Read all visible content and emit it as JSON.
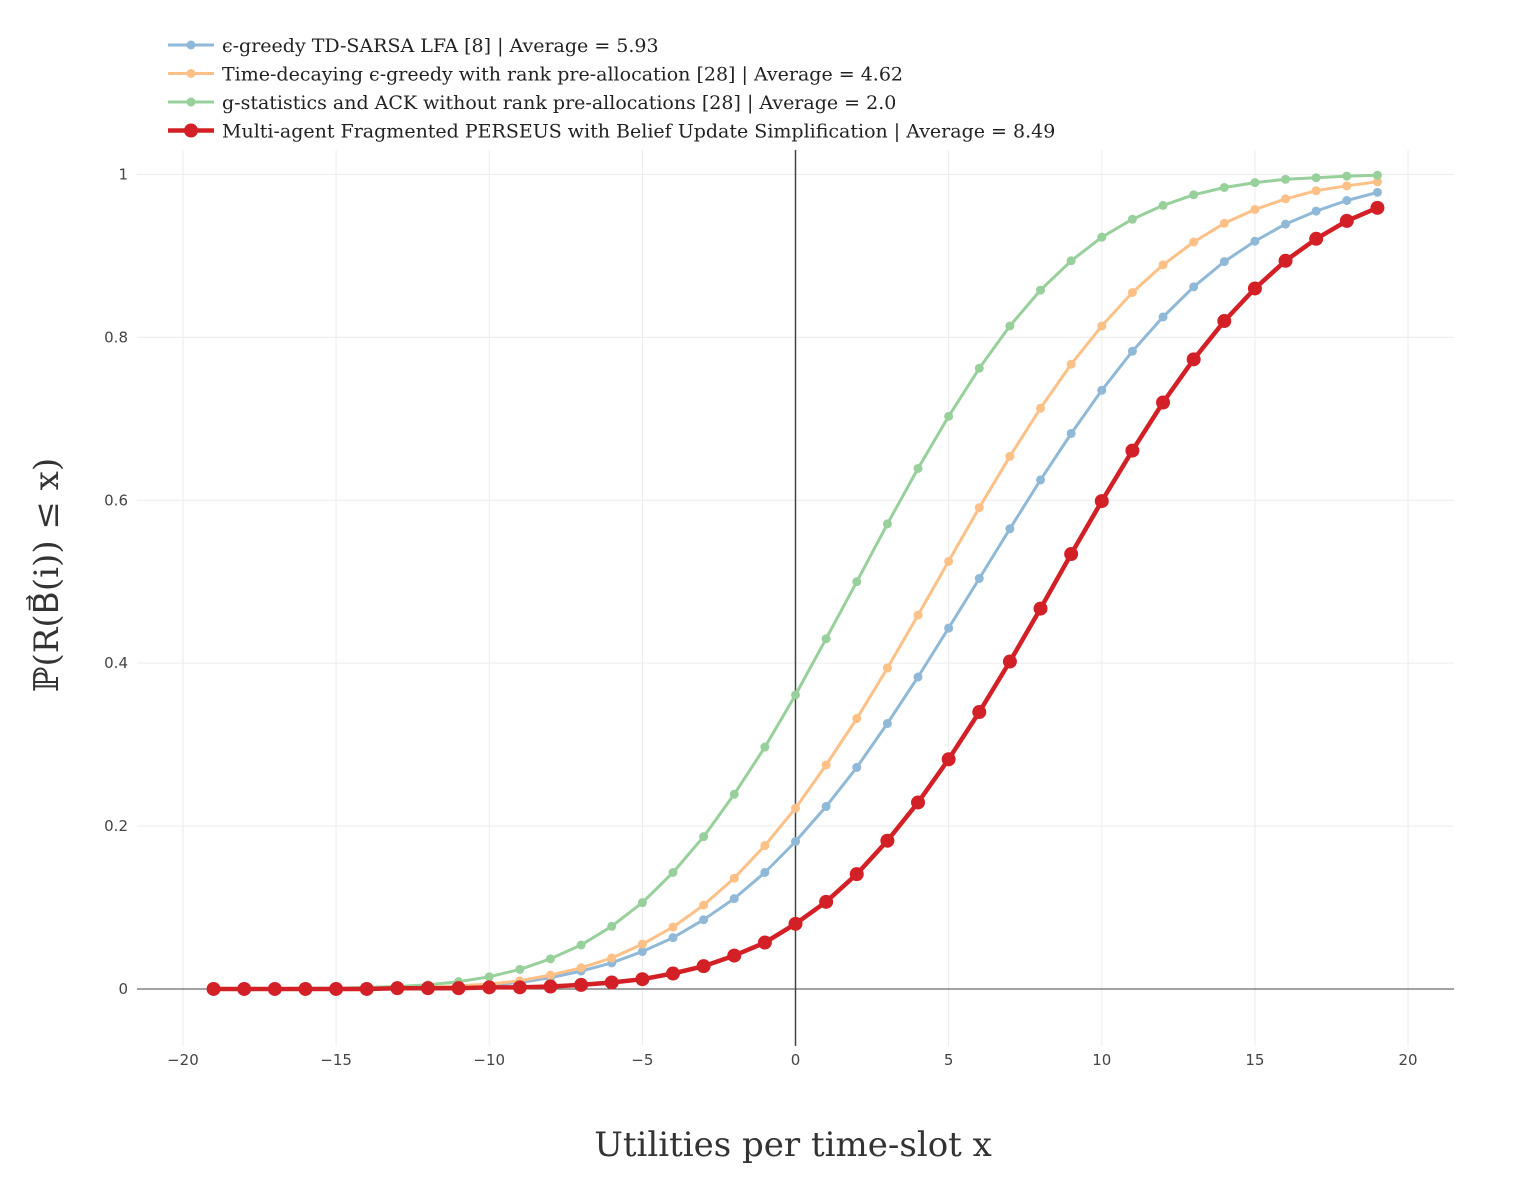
{
  "chart_data": {
    "type": "line",
    "xlabel": "Utilities per time-slot x",
    "ylabel": "ℙ(R(B⃗(i)) ≤ x)",
    "xlim": [
      -21.5,
      21.5
    ],
    "ylim": [
      -0.07,
      1.03
    ],
    "xticks": [
      -20,
      -15,
      -10,
      -5,
      0,
      5,
      10,
      15,
      20
    ],
    "xtick_labels": [
      "−20",
      "−15",
      "−10",
      "−5",
      "0",
      "5",
      "10",
      "15",
      "20"
    ],
    "yticks": [
      0,
      0.2,
      0.4,
      0.6,
      0.8,
      1
    ],
    "ytick_labels": [
      "0",
      "0.2",
      "0.4",
      "0.6",
      "0.8",
      "1"
    ],
    "grid": true,
    "legend_position": "top-left",
    "x": [
      -19,
      -18,
      -17,
      -16,
      -15,
      -14,
      -13,
      -12,
      -11,
      -10,
      -9,
      -8,
      -7,
      -6,
      -5,
      -4,
      -3,
      -2,
      -1,
      0,
      1,
      2,
      3,
      4,
      5,
      6,
      7,
      8,
      9,
      10,
      11,
      12,
      13,
      14,
      15,
      16,
      17,
      18,
      19
    ],
    "series": [
      {
        "name": "ϵ-greedy TD-SARSA LFA [8] | Average = 5.93",
        "color": "#8fb9d7",
        "line_width": 3,
        "marker_radius": 4.5,
        "values": [
          0,
          0,
          0,
          0,
          0,
          0.001,
          0.001,
          0.002,
          0.003,
          0.005,
          0.008,
          0.014,
          0.022,
          0.032,
          0.046,
          0.063,
          0.085,
          0.111,
          0.143,
          0.181,
          0.224,
          0.272,
          0.326,
          0.383,
          0.443,
          0.504,
          0.565,
          0.625,
          0.682,
          0.735,
          0.783,
          0.825,
          0.862,
          0.893,
          0.918,
          0.939,
          0.955,
          0.968,
          0.978
        ]
      },
      {
        "name": "Time-decaying ϵ-greedy with rank pre-allocation [28] | Average = 4.62",
        "color": "#fdc087",
        "line_width": 3,
        "marker_radius": 4.5,
        "values": [
          0,
          0,
          0,
          0,
          0,
          0.001,
          0.001,
          0.002,
          0.004,
          0.006,
          0.01,
          0.017,
          0.026,
          0.038,
          0.055,
          0.076,
          0.103,
          0.136,
          0.176,
          0.222,
          0.275,
          0.332,
          0.394,
          0.459,
          0.525,
          0.591,
          0.654,
          0.713,
          0.767,
          0.814,
          0.855,
          0.889,
          0.917,
          0.94,
          0.957,
          0.97,
          0.98,
          0.986,
          0.991
        ]
      },
      {
        "name": "g-statistics and ACK without rank pre-allocations [28] | Average = 2.0",
        "color": "#98d09b",
        "line_width": 3,
        "marker_radius": 4.5,
        "values": [
          0,
          0,
          0,
          0.001,
          0.001,
          0.002,
          0.003,
          0.005,
          0.009,
          0.015,
          0.024,
          0.037,
          0.054,
          0.077,
          0.106,
          0.143,
          0.187,
          0.239,
          0.297,
          0.361,
          0.43,
          0.5,
          0.571,
          0.639,
          0.703,
          0.762,
          0.814,
          0.858,
          0.894,
          0.923,
          0.945,
          0.962,
          0.975,
          0.984,
          0.99,
          0.994,
          0.996,
          0.998,
          0.999
        ]
      },
      {
        "name": "Multi-agent Fragmented PERSEUS with Belief Update Simplification | Average = 8.49",
        "color": "#d32027",
        "line_width": 4.5,
        "marker_radius": 7,
        "values": [
          0,
          0,
          0,
          0,
          0,
          0,
          0.001,
          0.001,
          0.001,
          0.002,
          0.002,
          0.003,
          0.005,
          0.008,
          0.012,
          0.019,
          0.028,
          0.041,
          0.057,
          0.08,
          0.107,
          0.141,
          0.182,
          0.229,
          0.282,
          0.34,
          0.402,
          0.467,
          0.534,
          0.599,
          0.661,
          0.72,
          0.773,
          0.82,
          0.86,
          0.894,
          0.921,
          0.943,
          0.959
        ]
      }
    ]
  }
}
